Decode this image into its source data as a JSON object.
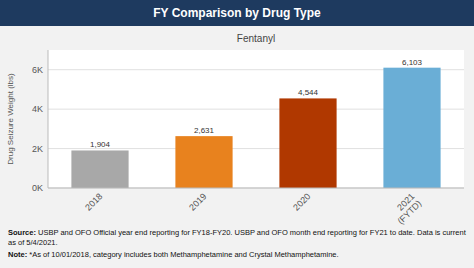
{
  "chart_data": {
    "type": "bar",
    "title": "FY Comparison by Drug Type",
    "subtitle": "Fentanyl",
    "categories": [
      "2018",
      "2019",
      "2020",
      "2021\n(FYTD)"
    ],
    "values": [
      1904,
      2631,
      4544,
      6103
    ],
    "value_labels": [
      "1,904",
      "2,631",
      "4,544",
      "6,103"
    ],
    "colors": [
      "#a8a8a8",
      "#e8821e",
      "#b03800",
      "#6aaed6"
    ],
    "ylabel": "Drug Seizure Weight (lbs)",
    "ylim": [
      0,
      7000
    ],
    "yticks": [
      {
        "value": 0,
        "label": "0K"
      },
      {
        "value": 2000,
        "label": "2K"
      },
      {
        "value": 4000,
        "label": "4K"
      },
      {
        "value": 6000,
        "label": "6K"
      }
    ],
    "grid": true,
    "data_labels": true,
    "annotations": [
      "Source: USBP and OFO Official year end reporting for FY18-FY20. USBP and OFO month end reporting for FY21 to date. Data is current as of 5/4/2021.",
      "Note: *As of 10/01/2018, category includes both Methamphetamine and Crystal Methamphetamine."
    ]
  }
}
